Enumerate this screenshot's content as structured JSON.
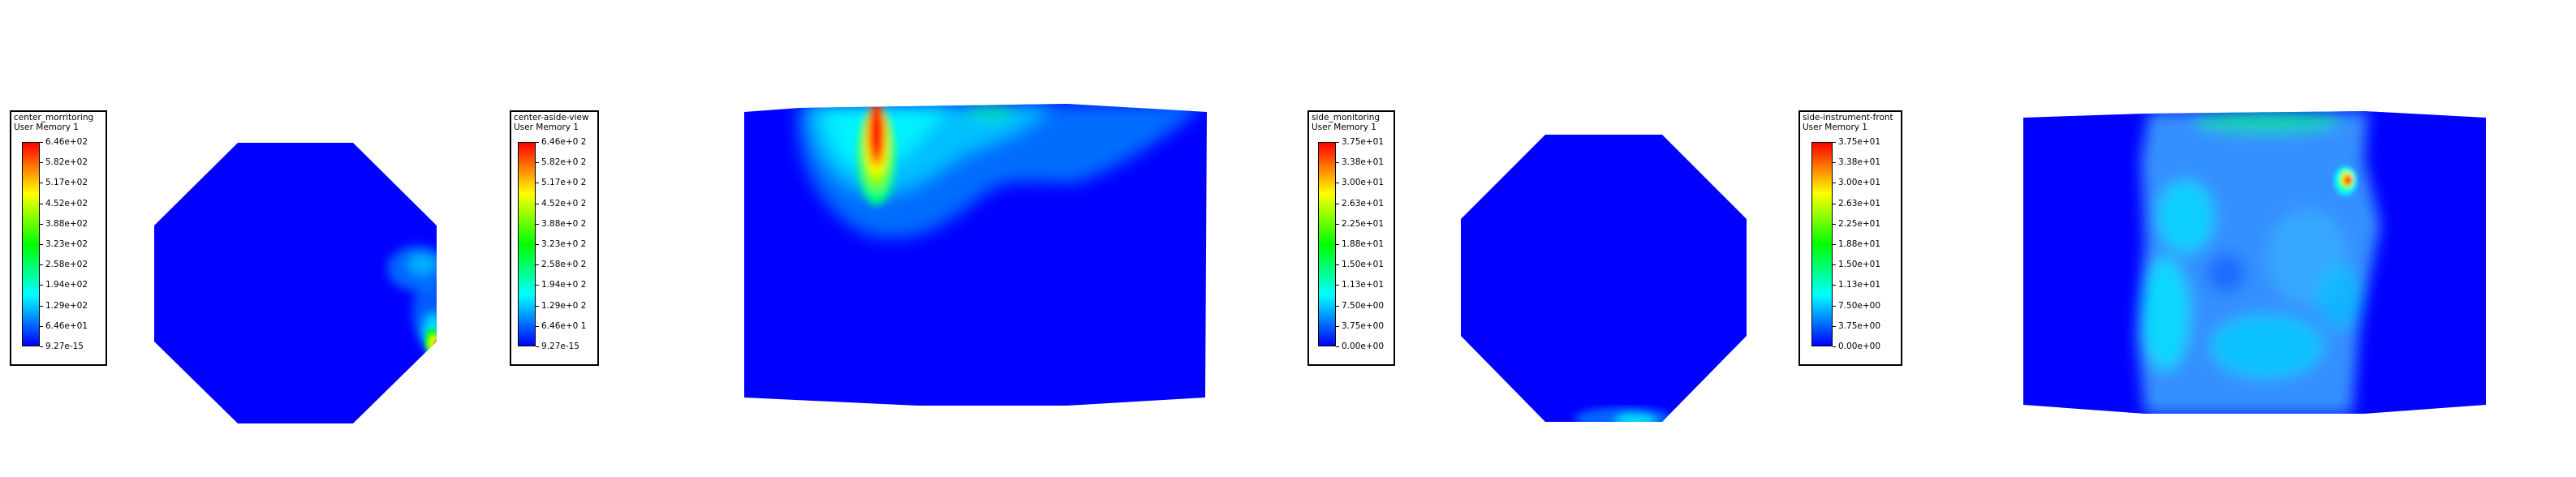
{
  "colormap": [
    "#0000ff",
    "#0080ff",
    "#00ffff",
    "#00ff80",
    "#00ff00",
    "#80ff00",
    "#ffff00",
    "#ff8000",
    "#ff0000"
  ],
  "legends": [
    {
      "name": "center_monitoring",
      "title": "center_morritoring",
      "subtitle": "User Memory 1",
      "labels": [
        "6.46e+02",
        "5.82e+02",
        "5.17e+02",
        "4.52e+02",
        "3.88e+02",
        "3.23e+02",
        "2.58e+02",
        "1.94e+02",
        "1.29e+02",
        "6.46e+01",
        "9.27e-15"
      ]
    },
    {
      "name": "center_aside_view",
      "title": "center-aside-view",
      "subtitle": "User Memory 1",
      "labels": [
        "6.46e+0 2",
        "5.82e+0 2",
        "5.17e+0 2",
        "4.52e+0 2",
        "3.88e+0 2",
        "3.23e+0 2",
        "2.58e+0 2",
        "1.94e+0 2",
        "1.29e+0 2",
        "6.46e+0 1",
        "9.27e-15"
      ]
    },
    {
      "name": "side_monitoring",
      "title": "side_monitoring",
      "subtitle": "User Memory 1",
      "labels": [
        "3.75e+01",
        "3.38e+01",
        "3.00e+01",
        "2.63e+01",
        "2.25e+01",
        "1.88e+01",
        "1.50e+01",
        "1.13e+01",
        "7.50e+00",
        "3.75e+00",
        "0.00e+00"
      ]
    },
    {
      "name": "side_instrument_front",
      "title": "side-instrument-front",
      "subtitle": "User Memory 1",
      "labels": [
        "3.75e+01",
        "3.38e+01",
        "3.00e+01",
        "2.63e+01",
        "2.25e+01",
        "1.88e+01",
        "1.50e+01",
        "1.13e+01",
        "7.50e+00",
        "3.75e+00",
        "0.00e+00"
      ]
    }
  ]
}
